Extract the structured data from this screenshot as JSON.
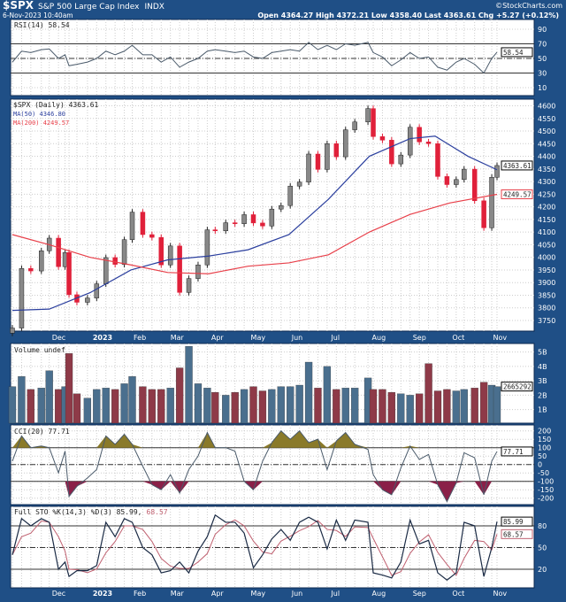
{
  "header": {
    "symbol": "$SPX",
    "name": "S&P 500 Large Cap Index",
    "exchange": "INDX",
    "datetime": "6-Nov-2023 10:40am",
    "brand": "©StockCharts.com",
    "ohlc": "Open 4364.27  High 4372.21  Low 4358.40  Last 4363.61  Chg +5.27 (+0.12%)"
  },
  "colors": {
    "frame": "#1f4f86",
    "up": "#888888",
    "down": "#e0203a",
    "ma50": "#2b3f9e",
    "ma200": "#e8404a",
    "vol_up": "#4a6f8e",
    "vol_down": "#8e3a48",
    "cci_pos": "#8a7a2a",
    "cci_neg": "#8a2048",
    "sto_k": "#1a2a44",
    "sto_d": "#c06070"
  },
  "chart_data": [
    {
      "type": "line",
      "panel": "RSI",
      "legend": "RSI(14) 58.54",
      "last_label": "58.54",
      "ylim": [
        0,
        100
      ],
      "ticks": [
        10,
        30,
        50,
        70,
        90
      ],
      "levels": [
        30,
        50,
        70
      ],
      "values": [
        45,
        60,
        58,
        62,
        63,
        50,
        55,
        40,
        42,
        45,
        50,
        60,
        55,
        60,
        68,
        55,
        55,
        45,
        52,
        38,
        45,
        50,
        60,
        62,
        60,
        58,
        60,
        52,
        50,
        58,
        60,
        62,
        60,
        72,
        62,
        68,
        62,
        70,
        68,
        72,
        58,
        52,
        40,
        48,
        58,
        50,
        52,
        38,
        34,
        45,
        50,
        42,
        30,
        50,
        58.54
      ]
    },
    {
      "type": "candlestick",
      "panel": "Price",
      "legend": "$SPX (Daily) 4363.61",
      "ma50_legend": "MA(50) 4346.80",
      "ma200_legend": "MA(200) 4249.57",
      "last_label": "4363.61",
      "ma50_label": "4346.80",
      "ma200_label": "4249.57",
      "ylim": [
        3730,
        4620
      ],
      "ticks": [
        3750,
        3800,
        3850,
        3900,
        3950,
        4000,
        4050,
        4100,
        4150,
        4200,
        4250,
        4300,
        4350,
        4400,
        4450,
        4500,
        4550,
        4600
      ],
      "dates": [
        "2022-11-03",
        "2022-11-10",
        "2022-11-17",
        "2022-11-25",
        "2022-12-01",
        "2022-12-08",
        "2022-12-13",
        "2022-12-16",
        "2022-12-22",
        "2022-12-30",
        "2023-01-06",
        "2023-01-13",
        "2023-01-20",
        "2023-01-27",
        "2023-02-02",
        "2023-02-10",
        "2023-02-17",
        "2023-02-24",
        "2023-03-03",
        "2023-03-10",
        "2023-03-17",
        "2023-03-24",
        "2023-03-31",
        "2023-04-06",
        "2023-04-14",
        "2023-04-21",
        "2023-04-28",
        "2023-05-05",
        "2023-05-12",
        "2023-05-19",
        "2023-05-26",
        "2023-06-02",
        "2023-06-09",
        "2023-06-16",
        "2023-06-23",
        "2023-06-30",
        "2023-07-07",
        "2023-07-14",
        "2023-07-21",
        "2023-07-31",
        "2023-08-04",
        "2023-08-11",
        "2023-08-18",
        "2023-08-25",
        "2023-09-01",
        "2023-09-08",
        "2023-09-15",
        "2023-09-22",
        "2023-09-29",
        "2023-10-06",
        "2023-10-12",
        "2023-10-20",
        "2023-10-27",
        "2023-11-02",
        "2023-11-06"
      ],
      "close": [
        3720,
        3956,
        3946,
        4026,
        4076,
        3963,
        4019,
        3852,
        3822,
        3839,
        3895,
        3999,
        3972,
        4070,
        4179,
        4090,
        4079,
        3970,
        4045,
        3861,
        3916,
        3970,
        4109,
        4105,
        4137,
        4133,
        4169,
        4136,
        4124,
        4191,
        4205,
        4282,
        4298,
        4409,
        4348,
        4450,
        4398,
        4505,
        4536,
        4589,
        4478,
        4464,
        4370,
        4405,
        4515,
        4457,
        4450,
        4320,
        4288,
        4308,
        4349,
        4224,
        4117,
        4317,
        4363.61
      ],
      "ma50": [
        [
          "2022-11-03",
          3790
        ],
        [
          "2022-12-01",
          3795
        ],
        [
          "2023-01-01",
          3860
        ],
        [
          "2023-02-01",
          3950
        ],
        [
          "2023-03-01",
          3990
        ],
        [
          "2023-04-01",
          4005
        ],
        [
          "2023-05-01",
          4030
        ],
        [
          "2023-06-01",
          4090
        ],
        [
          "2023-07-01",
          4230
        ],
        [
          "2023-08-01",
          4400
        ],
        [
          "2023-09-01",
          4470
        ],
        [
          "2023-09-20",
          4480
        ],
        [
          "2023-10-15",
          4400
        ],
        [
          "2023-11-06",
          4346.8
        ]
      ],
      "ma200": [
        [
          "2022-11-03",
          4090
        ],
        [
          "2022-12-01",
          4050
        ],
        [
          "2023-01-01",
          4000
        ],
        [
          "2023-02-01",
          3970
        ],
        [
          "2023-03-01",
          3940
        ],
        [
          "2023-04-01",
          3935
        ],
        [
          "2023-05-01",
          3965
        ],
        [
          "2023-06-01",
          3978
        ],
        [
          "2023-07-01",
          4010
        ],
        [
          "2023-08-01",
          4100
        ],
        [
          "2023-09-01",
          4170
        ],
        [
          "2023-10-01",
          4215
        ],
        [
          "2023-11-06",
          4249.57
        ]
      ]
    },
    {
      "type": "bar",
      "panel": "Volume",
      "legend": "Volume undef",
      "last_label": "2665292",
      "ticks": [
        "1B",
        "2B",
        "3B",
        "4B",
        "5B"
      ],
      "unit": "B",
      "values": [
        2.6,
        3.3,
        2.4,
        2.5,
        3.7,
        2.4,
        2.6,
        4.9,
        2.1,
        1.8,
        2.4,
        2.5,
        2.4,
        2.8,
        3.3,
        2.6,
        2.4,
        2.4,
        2.5,
        3.9,
        5.4,
        2.8,
        2.5,
        2.2,
        2.0,
        2.2,
        2.4,
        2.6,
        2.3,
        2.4,
        2.6,
        2.6,
        2.7,
        4.3,
        2.5,
        4.0,
        2.4,
        2.5,
        2.5,
        3.2,
        2.4,
        2.4,
        2.2,
        2.1,
        2.0,
        2.1,
        4.2,
        2.3,
        2.4,
        2.3,
        2.4,
        2.5,
        2.9,
        2.7,
        2.6
      ]
    },
    {
      "type": "area",
      "panel": "CCI",
      "legend": "CCI(20) 77.71",
      "last_label": "77.71",
      "ticks": [
        -200,
        -150,
        -100,
        -50,
        0,
        50,
        100,
        150,
        200
      ],
      "levels": [
        -100,
        0,
        100
      ],
      "values": [
        20,
        170,
        100,
        110,
        100,
        -50,
        80,
        -190,
        -130,
        -80,
        -30,
        170,
        120,
        180,
        120,
        -10,
        -120,
        -150,
        -60,
        -170,
        -30,
        50,
        190,
        100,
        100,
        80,
        -100,
        -150,
        20,
        130,
        200,
        150,
        200,
        130,
        150,
        -30,
        140,
        190,
        120,
        90,
        -60,
        -150,
        -180,
        -20,
        110,
        30,
        60,
        -120,
        -220,
        -110,
        70,
        40,
        -180,
        20,
        77.71
      ]
    },
    {
      "type": "line",
      "panel": "Full STO",
      "legend_k": "Full STO %K(14,3) %D(3) 85.99,",
      "legend_d": "68.57",
      "k_label": "85.99",
      "d_label": "68.57",
      "ticks": [
        20,
        50,
        80
      ],
      "levels": [
        20,
        50,
        80
      ],
      "k": [
        40,
        90,
        80,
        90,
        85,
        20,
        30,
        10,
        18,
        18,
        25,
        85,
        65,
        90,
        85,
        50,
        40,
        15,
        18,
        30,
        15,
        45,
        65,
        95,
        85,
        85,
        70,
        22,
        40,
        62,
        75,
        60,
        85,
        92,
        85,
        48,
        88,
        60,
        88,
        85,
        15,
        12,
        8,
        30,
        88,
        55,
        60,
        15,
        5,
        15,
        85,
        80,
        10,
        50,
        85.99
      ]
    }
  ],
  "x_axis": {
    "labels": [
      [
        "2022-12-01",
        "Dec"
      ],
      [
        "2023-01-01",
        "2023"
      ],
      [
        "2023-02-01",
        "Feb"
      ],
      [
        "2023-03-01",
        "Mar"
      ],
      [
        "2023-04-01",
        "Apr"
      ],
      [
        "2023-05-01",
        "May"
      ],
      [
        "2023-06-01",
        "Jun"
      ],
      [
        "2023-07-01",
        "Jul"
      ],
      [
        "2023-08-01",
        "Aug"
      ],
      [
        "2023-09-01",
        "Sep"
      ],
      [
        "2023-10-01",
        "Oct"
      ],
      [
        "2023-11-01",
        "Nov"
      ]
    ]
  }
}
